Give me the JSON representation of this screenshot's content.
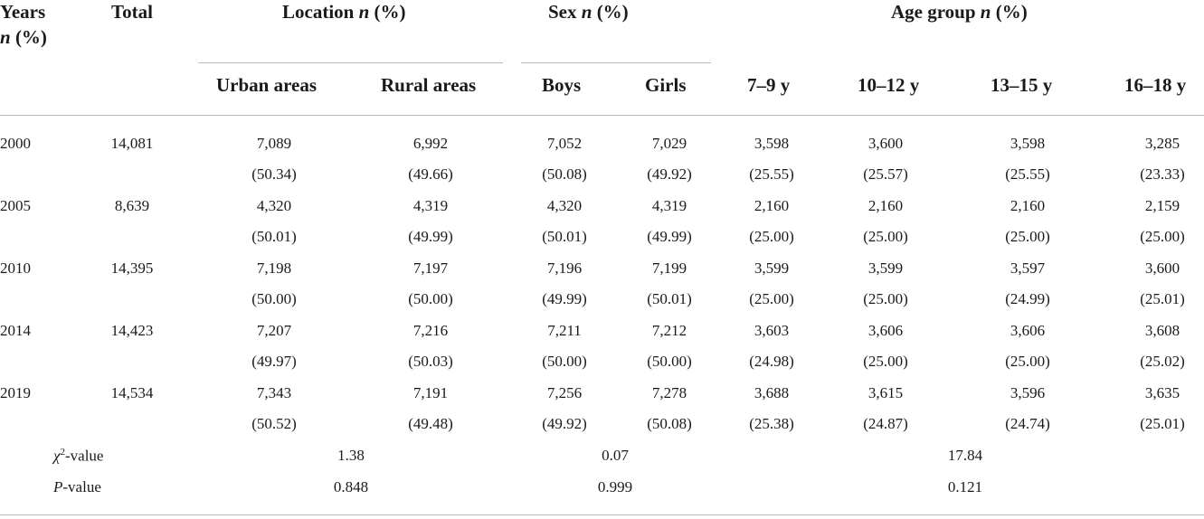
{
  "header": {
    "years_line1": "Years",
    "years_line2_italic": "n",
    "years_line2_rest": " (%)",
    "total": "Total",
    "location": "Location",
    "sex": "Sex",
    "age_group": "Age group",
    "n_italic": "n",
    "percent": " (%)",
    "sub_urban": "Urban areas",
    "sub_rural": "Rural areas",
    "sub_boys": "Boys",
    "sub_girls": "Girls",
    "sub_age1": "7–9 y",
    "sub_age2": "10–12 y",
    "sub_age3": "13–15 y",
    "sub_age4": "16–18 y"
  },
  "rows": [
    {
      "year": "2000",
      "total": "14,081",
      "n": [
        "7,089",
        "6,992",
        "7,052",
        "7,029",
        "3,598",
        "3,600",
        "3,598",
        "3,285"
      ],
      "p": [
        "(50.34)",
        "(49.66)",
        "(50.08)",
        "(49.92)",
        "(25.55)",
        "(25.57)",
        "(25.55)",
        "(23.33)"
      ]
    },
    {
      "year": "2005",
      "total": "8,639",
      "n": [
        "4,320",
        "4,319",
        "4,320",
        "4,319",
        "2,160",
        "2,160",
        "2,160",
        "2,159"
      ],
      "p": [
        "(50.01)",
        "(49.99)",
        "(50.01)",
        "(49.99)",
        "(25.00)",
        "(25.00)",
        "(25.00)",
        "(25.00)"
      ]
    },
    {
      "year": "2010",
      "total": "14,395",
      "n": [
        "7,198",
        "7,197",
        "7,196",
        "7,199",
        "3,599",
        "3,599",
        "3,597",
        "3,600"
      ],
      "p": [
        "(50.00)",
        "(50.00)",
        "(49.99)",
        "(50.01)",
        "(25.00)",
        "(25.00)",
        "(24.99)",
        "(25.01)"
      ]
    },
    {
      "year": "2014",
      "total": "14,423",
      "n": [
        "7,207",
        "7,216",
        "7,211",
        "7,212",
        "3,603",
        "3,606",
        "3,606",
        "3,608"
      ],
      "p": [
        "(49.97)",
        "(50.03)",
        "(50.00)",
        "(50.00)",
        "(24.98)",
        "(25.00)",
        "(25.00)",
        "(25.02)"
      ]
    },
    {
      "year": "2019",
      "total": "14,534",
      "n": [
        "7,343",
        "7,191",
        "7,256",
        "7,278",
        "3,688",
        "3,615",
        "3,596",
        "3,635"
      ],
      "p": [
        "(50.52)",
        "(49.48)",
        "(49.92)",
        "(50.08)",
        "(25.38)",
        "(24.87)",
        "(24.74)",
        "(25.01)"
      ]
    }
  ],
  "stats": {
    "chi_label_symbol": "χ",
    "chi_label_sup": "2",
    "chi_label_rest": "-value",
    "p_label_italic": "P",
    "p_label_rest": "-value",
    "chi_location": "1.38",
    "chi_sex": "0.07",
    "chi_age": "17.84",
    "p_location": "0.848",
    "p_sex": "0.999",
    "p_age": "0.121"
  }
}
